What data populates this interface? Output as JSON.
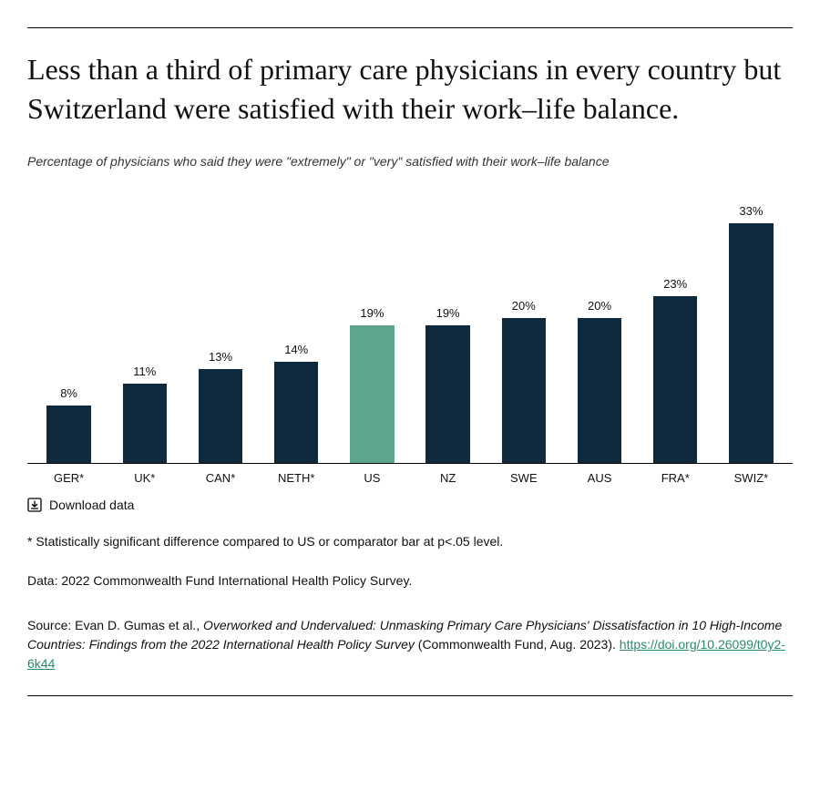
{
  "title": "Less than a third of primary care physicians in every country but Switzerland were satisfied with their work–life balance.",
  "subtitle": "Percentage of physicians who said they were \"extremely\" or \"very\" satisfied with their work–life balance",
  "chart": {
    "type": "bar",
    "value_max": 33,
    "bar_colors": {
      "default": "#0f2a3f",
      "highlight": "#5fa58c"
    },
    "axis_color": "#000000",
    "background_color": "#ffffff",
    "value_label_fontsize": 13,
    "x_label_fontsize": 13,
    "bars": [
      {
        "label": "GER*",
        "value": 8,
        "display": "8%",
        "color": "default"
      },
      {
        "label": "UK*",
        "value": 11,
        "display": "11%",
        "color": "default"
      },
      {
        "label": "CAN*",
        "value": 13,
        "display": "13%",
        "color": "default"
      },
      {
        "label": "NETH*",
        "value": 14,
        "display": "14%",
        "color": "default"
      },
      {
        "label": "US",
        "value": 19,
        "display": "19%",
        "color": "highlight"
      },
      {
        "label": "NZ",
        "value": 19,
        "display": "19%",
        "color": "default"
      },
      {
        "label": "SWE",
        "value": 20,
        "display": "20%",
        "color": "default"
      },
      {
        "label": "AUS",
        "value": 20,
        "display": "20%",
        "color": "default"
      },
      {
        "label": "FRA*",
        "value": 23,
        "display": "23%",
        "color": "default"
      },
      {
        "label": "SWIZ*",
        "value": 33,
        "display": "33%",
        "color": "default"
      }
    ]
  },
  "download_label": "Download data",
  "footnote": "* Statistically significant difference compared to US or comparator bar at p<.05 level.",
  "data_note": "Data: 2022 Commonwealth Fund International Health Policy Survey.",
  "source": {
    "prefix": "Source: Evan D. Gumas et al., ",
    "italic": "Overworked and Undervalued: Unmasking Primary Care Physicians' Dissatisfaction in 10 High-Income Countries: Findings from the 2022 International Health Policy Survey",
    "suffix": " (Commonwealth Fund, Aug. 2023). ",
    "link_text": "https://doi.org/10.26099/t0y2-6k44"
  }
}
